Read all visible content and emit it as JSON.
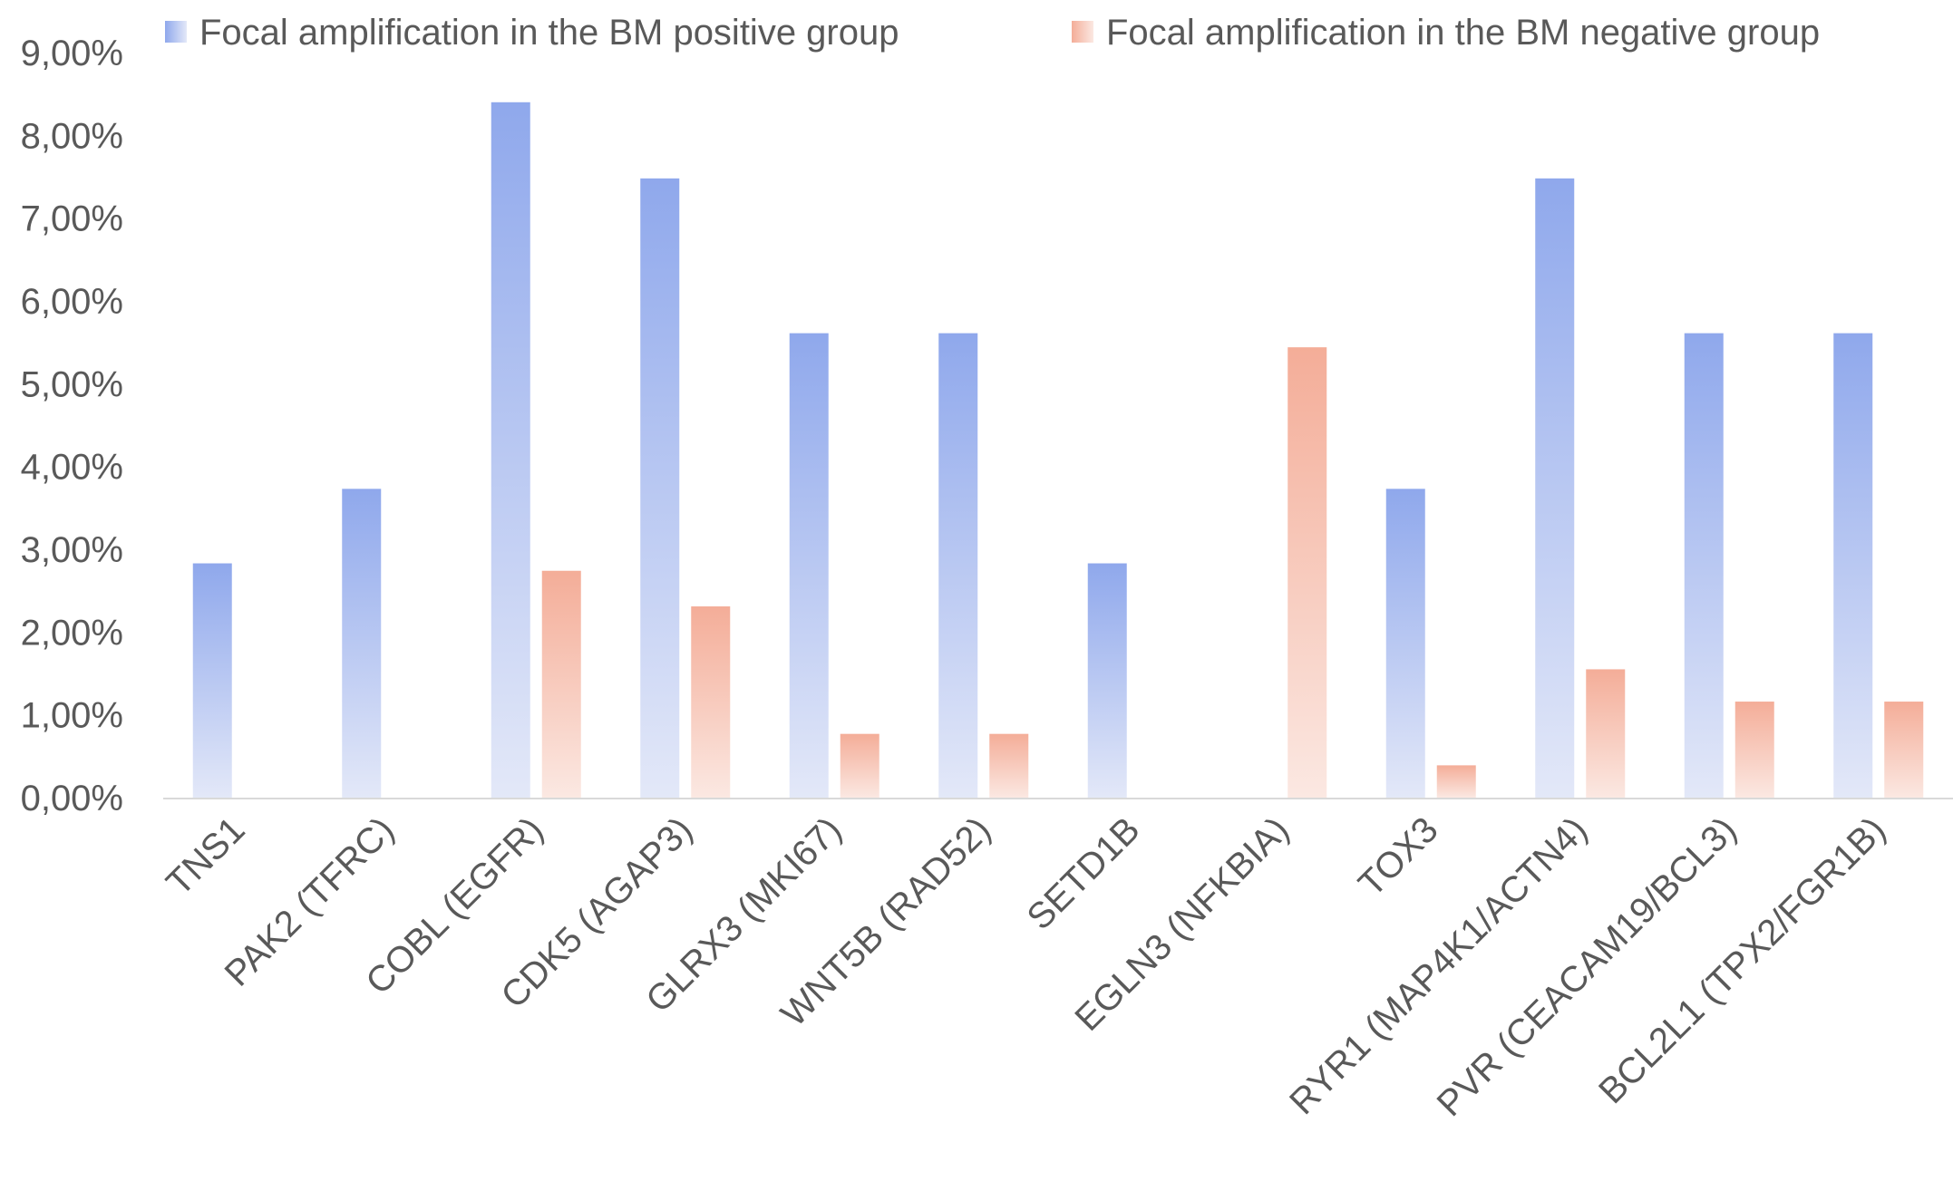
{
  "chart_data": {
    "type": "bar",
    "title": "",
    "xlabel": "",
    "ylabel": "",
    "ylim": [
      0,
      9
    ],
    "y_ticks": [
      "0,00%",
      "1,00%",
      "2,00%",
      "3,00%",
      "4,00%",
      "5,00%",
      "6,00%",
      "7,00%",
      "8,00%",
      "9,00%"
    ],
    "grid": false,
    "legend_position": "top",
    "categories": [
      "TNS1",
      "PAK2 (TFRC)",
      "COBL (EGFR)",
      "CDK5 (AGAP3)",
      "GLRX3 (MKI67)",
      "WNT5B (RAD52)",
      "SETD1B",
      "EGLN3 (NFKBIA)",
      "TOX3",
      "RYR1 (MAP4K1/ACTN4)",
      "PVR (CEACAM19/BCL3)",
      "BCL2L1 (TPX2/FGR1B)"
    ],
    "series": [
      {
        "name": "Focal amplification in the BM positive group",
        "color": "#8fa8ec",
        "color_light": "#e3e8f8",
        "values": [
          2.83,
          3.73,
          8.4,
          7.48,
          5.61,
          5.61,
          2.83,
          0,
          3.73,
          7.48,
          5.61,
          5.61
        ]
      },
      {
        "name": "Focal amplification in the BM negative group",
        "color": "#f4ad98",
        "color_light": "#fbe8e2",
        "values": [
          0,
          0,
          2.74,
          2.31,
          0.77,
          0.77,
          0,
          5.44,
          0.39,
          1.55,
          1.16,
          1.16
        ]
      }
    ]
  }
}
